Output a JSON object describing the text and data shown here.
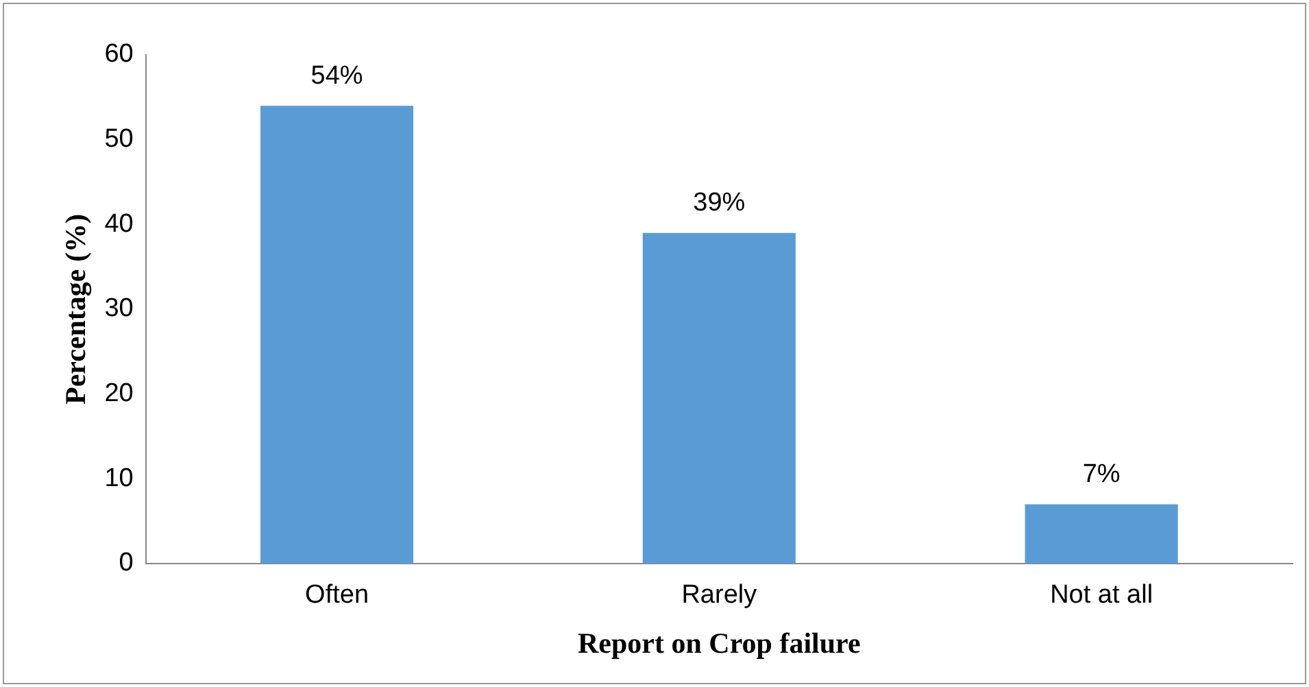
{
  "chart_data": {
    "type": "bar",
    "xlabel": "Report on Crop failure",
    "ylabel": "Percentage (%)",
    "categories": [
      "Often",
      "Rarely",
      "Not at all"
    ],
    "values": [
      54,
      39,
      7
    ],
    "value_labels": [
      "54%",
      "39%",
      "7%"
    ],
    "color": "#5b9bd5",
    "ylim": [
      0,
      60
    ],
    "yticks": [
      0,
      10,
      20,
      30,
      40,
      50,
      60
    ],
    "grid": false,
    "legend": false
  }
}
